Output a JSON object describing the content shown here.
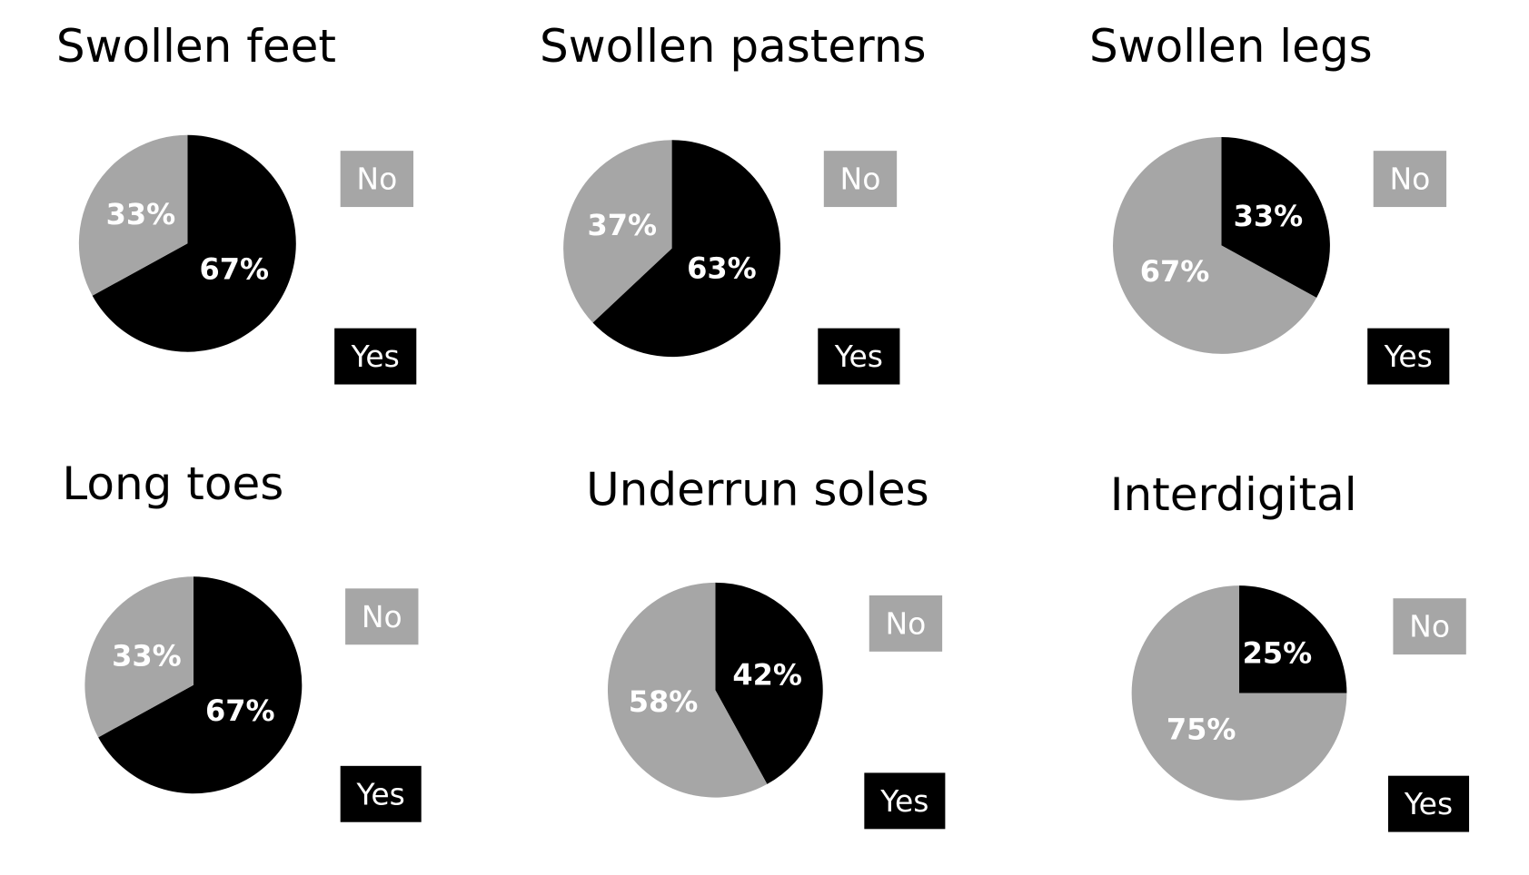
{
  "chart_data": [
    {
      "type": "pie",
      "title": "Swollen feet",
      "categories": [
        "No",
        "Yes"
      ],
      "values": [
        33,
        67
      ],
      "value_labels": [
        "33%",
        "67%"
      ],
      "colors": [
        "#a6a6a6",
        "#000000"
      ]
    },
    {
      "type": "pie",
      "title": "Swollen pasterns",
      "categories": [
        "No",
        "Yes"
      ],
      "values": [
        37,
        63
      ],
      "value_labels": [
        "37%",
        "63%"
      ],
      "colors": [
        "#a6a6a6",
        "#000000"
      ]
    },
    {
      "type": "pie",
      "title": "Swollen legs",
      "categories": [
        "No",
        "Yes"
      ],
      "values": [
        67,
        33
      ],
      "value_labels": [
        "67%",
        "33%"
      ],
      "colors": [
        "#a6a6a6",
        "#000000"
      ]
    },
    {
      "type": "pie",
      "title": "Long toes",
      "categories": [
        "No",
        "Yes"
      ],
      "values": [
        33,
        67
      ],
      "value_labels": [
        "33%",
        "67%"
      ],
      "colors": [
        "#a6a6a6",
        "#000000"
      ]
    },
    {
      "type": "pie",
      "title": "Underrun soles",
      "categories": [
        "No",
        "Yes"
      ],
      "values": [
        58,
        42
      ],
      "value_labels": [
        "58%",
        "42%"
      ],
      "colors": [
        "#a6a6a6",
        "#000000"
      ]
    },
    {
      "type": "pie",
      "title": "Interdigital",
      "categories": [
        "No",
        "Yes"
      ],
      "values": [
        75,
        25
      ],
      "value_labels": [
        "75%",
        "25%"
      ],
      "colors": [
        "#a6a6a6",
        "#000000"
      ]
    }
  ]
}
